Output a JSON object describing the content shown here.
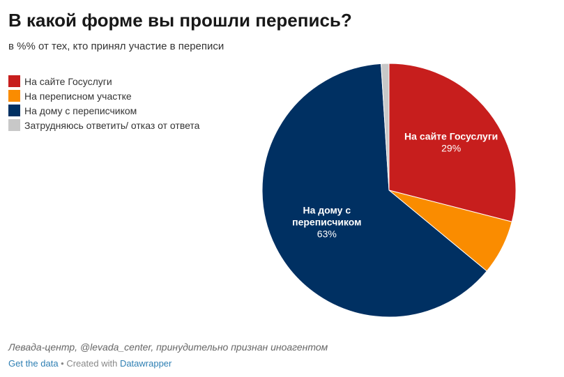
{
  "header": {
    "title": "В какой форме вы прошли перепись?",
    "subtitle": "в %% от тех, кто принял участие в переписи"
  },
  "chart_data": {
    "type": "pie",
    "legend_position": "top-left",
    "slices": [
      {
        "name": "На сайте Госуслуги",
        "value": 29,
        "color": "#c71e1d",
        "label_lines": [
          "На сайте Госуслуги"
        ],
        "value_label": "29%"
      },
      {
        "name": "На переписном участке",
        "value": 7,
        "color": "#fa8c00",
        "label_lines": [],
        "value_label": ""
      },
      {
        "name": "На дому с переписчиком",
        "value": 63,
        "color": "#003062",
        "label_lines": [
          "На дому с",
          "переписчиком"
        ],
        "value_label": "63%"
      },
      {
        "name": "Затрудняюсь ответить/ отказ от ответа",
        "value": 1,
        "color": "#c8c8c8",
        "label_lines": [],
        "value_label": ""
      }
    ]
  },
  "footer": {
    "source": "Левада-центр, @levada_center, принудительно признан иноагентом",
    "get_data": "Get the data",
    "separator": " • Created with ",
    "datawrapper": "Datawrapper"
  }
}
